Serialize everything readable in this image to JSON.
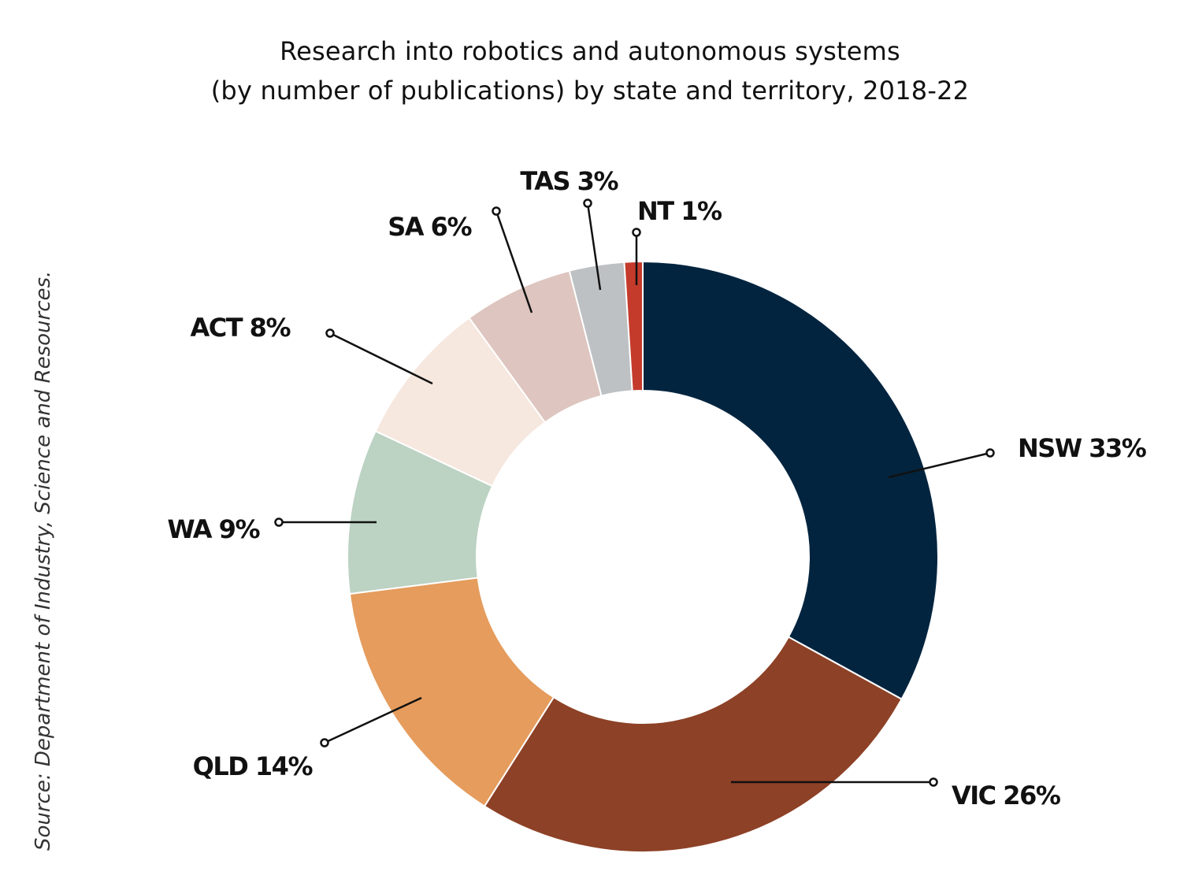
{
  "chart_data": {
    "type": "donut",
    "title_lines": [
      "Research into robotics and autonomous systems",
      "(by number of publications) by state and territory, 2018-22"
    ],
    "source": "Source: Department of Industry, Science and Resources.",
    "slices": [
      {
        "name": "NSW",
        "value": 33,
        "label": "NSW 33%",
        "color": "#02243f"
      },
      {
        "name": "VIC",
        "value": 26,
        "label": "VIC 26%",
        "color": "#8d4126"
      },
      {
        "name": "QLD",
        "value": 14,
        "label": "QLD 14%",
        "color": "#e59c5d"
      },
      {
        "name": "WA",
        "value": 9,
        "label": "WA 9%",
        "color": "#bcd2c3"
      },
      {
        "name": "ACT",
        "value": 8,
        "label": "ACT 8%",
        "color": "#f6e7df"
      },
      {
        "name": "SA",
        "value": 6,
        "label": "SA 6%",
        "color": "#dec5bf"
      },
      {
        "name": "TAS",
        "value": 3,
        "label": "TAS 3%",
        "color": "#bdc1c4"
      },
      {
        "name": "NT",
        "value": 1,
        "label": "NT 1%",
        "color": "#c43b2b"
      }
    ]
  }
}
